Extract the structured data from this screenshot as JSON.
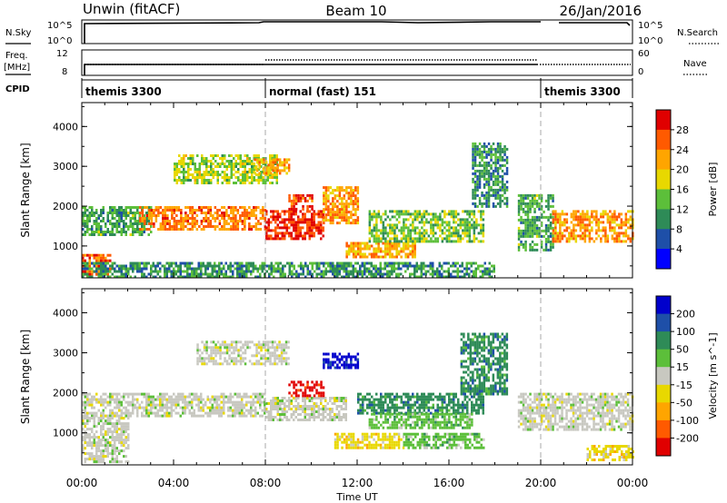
{
  "header": {
    "station": "Unwin (fitACF)",
    "beam": "Beam 10",
    "date": "26/Jan/2016"
  },
  "top_panels": {
    "nsky_label": "N.Sky",
    "nsky_ticks": [
      "10^5",
      "10^0"
    ],
    "nsearch_label": "N.Search",
    "nsearch_ticks": [
      "10^5",
      "10^0"
    ],
    "freq_label": "Freq.",
    "freq_unit": "[MHz]",
    "freq_ticks": [
      "12",
      "8"
    ],
    "nave_label": "Nave",
    "nave_ticks": [
      "60",
      "0"
    ],
    "cpid_label": "CPID",
    "cpid_segments": [
      {
        "label": "themis 3300",
        "start_h": 0,
        "end_h": 8
      },
      {
        "label": "normal (fast) 151",
        "start_h": 8,
        "end_h": 20
      },
      {
        "label": "themis 3300",
        "start_h": 20,
        "end_h": 24
      }
    ]
  },
  "chart_data": [
    {
      "type": "heatmap",
      "quantity": "Power",
      "ylabel": "Slant Range [km]",
      "xlabel": "",
      "xlim": [
        0,
        24
      ],
      "ylim": [
        200,
        4600
      ],
      "yticks": [
        "1000",
        "2000",
        "3000",
        "4000"
      ],
      "colorbar_label": "Power [dB]",
      "colorbar_ticks": [
        "4",
        "8",
        "12",
        "16",
        "20",
        "24",
        "28"
      ],
      "colorbar_range": [
        0,
        32
      ],
      "colors": [
        "#0000ff",
        "#1e4fa8",
        "#2e8b57",
        "#5cbf3a",
        "#e8d800",
        "#ffa500",
        "#ff5a00",
        "#e00000"
      ],
      "regions": [
        {
          "h0": 0.0,
          "h1": 1.2,
          "r0": 300,
          "r1": 800,
          "level": 0.85
        },
        {
          "h0": 0.0,
          "h1": 3.0,
          "r0": 1300,
          "r1": 2000,
          "level": 0.35
        },
        {
          "h0": 2.5,
          "h1": 8.0,
          "r0": 1400,
          "r1": 2000,
          "level": 0.8
        },
        {
          "h0": 8.0,
          "h1": 10.5,
          "r0": 1200,
          "r1": 1900,
          "level": 0.95
        },
        {
          "h0": 9.0,
          "h1": 10.0,
          "r0": 1900,
          "r1": 2300,
          "level": 0.9
        },
        {
          "h0": 10.5,
          "h1": 12.0,
          "r0": 1600,
          "r1": 2500,
          "level": 0.75
        },
        {
          "h0": 11.5,
          "h1": 14.5,
          "r0": 700,
          "r1": 1100,
          "level": 0.7
        },
        {
          "h0": 12.5,
          "h1": 17.5,
          "r0": 1100,
          "r1": 1900,
          "level": 0.45
        },
        {
          "h0": 4.0,
          "h1": 8.5,
          "r0": 2600,
          "r1": 3300,
          "level": 0.5
        },
        {
          "h0": 7.5,
          "h1": 9.0,
          "r0": 2800,
          "r1": 3200,
          "level": 0.7
        },
        {
          "h0": 17.0,
          "h1": 18.5,
          "r0": 2000,
          "r1": 3600,
          "level": 0.3
        },
        {
          "h0": 19.0,
          "h1": 20.5,
          "r0": 900,
          "r1": 2300,
          "level": 0.35
        },
        {
          "h0": 20.5,
          "h1": 24.0,
          "r0": 1100,
          "r1": 1900,
          "level": 0.75
        },
        {
          "h0": 0.0,
          "h1": 18.0,
          "r0": 200,
          "r1": 600,
          "level": 0.3
        }
      ]
    },
    {
      "type": "heatmap",
      "quantity": "Velocity",
      "ylabel": "Slant Range [km]",
      "xlabel": "Time UT",
      "xlim": [
        0,
        24
      ],
      "ylim": [
        200,
        4600
      ],
      "xticks": [
        "00:00",
        "04:00",
        "08:00",
        "12:00",
        "16:00",
        "20:00",
        "00:00"
      ],
      "yticks": [
        "1000",
        "2000",
        "3000",
        "4000"
      ],
      "colorbar_label": "Velocity [m s^-1]",
      "colorbar_ticks": [
        "200",
        "100",
        "50",
        "15",
        "-15",
        "-50",
        "-100",
        "-200"
      ],
      "colorbar_range": [
        -250,
        250
      ],
      "colors": [
        "#0000cc",
        "#1e4fa8",
        "#2e8b57",
        "#5cbf3a",
        "#c8c8c0",
        "#e8d800",
        "#ffa500",
        "#ff5a00",
        "#e00000"
      ],
      "regions": [
        {
          "h0": 0.0,
          "h1": 8.0,
          "r0": 1400,
          "r1": 2000,
          "level": 4
        },
        {
          "h0": 0.0,
          "h1": 2.0,
          "r0": 300,
          "r1": 1400,
          "level": 4
        },
        {
          "h0": 8.0,
          "h1": 11.5,
          "r0": 1300,
          "r1": 1900,
          "level": 4
        },
        {
          "h0": 9.0,
          "h1": 10.5,
          "r0": 1950,
          "r1": 2300,
          "level": 8
        },
        {
          "h0": 10.5,
          "h1": 12.0,
          "r0": 2600,
          "r1": 3000,
          "level": 0
        },
        {
          "h0": 12.0,
          "h1": 17.5,
          "r0": 1500,
          "r1": 2000,
          "level": 2
        },
        {
          "h0": 12.5,
          "h1": 17.0,
          "r0": 1100,
          "r1": 1500,
          "level": 3
        },
        {
          "h0": 11.0,
          "h1": 14.0,
          "r0": 600,
          "r1": 1000,
          "level": 5
        },
        {
          "h0": 14.0,
          "h1": 17.5,
          "r0": 600,
          "r1": 1000,
          "level": 3
        },
        {
          "h0": 16.5,
          "h1": 18.5,
          "r0": 2000,
          "r1": 3500,
          "level": 2
        },
        {
          "h0": 19.0,
          "h1": 24.0,
          "r0": 1100,
          "r1": 2000,
          "level": 4
        },
        {
          "h0": 22.0,
          "h1": 24.0,
          "r0": 300,
          "r1": 700,
          "level": 5
        },
        {
          "h0": 5.0,
          "h1": 9.0,
          "r0": 2700,
          "r1": 3300,
          "level": 4
        }
      ]
    }
  ]
}
